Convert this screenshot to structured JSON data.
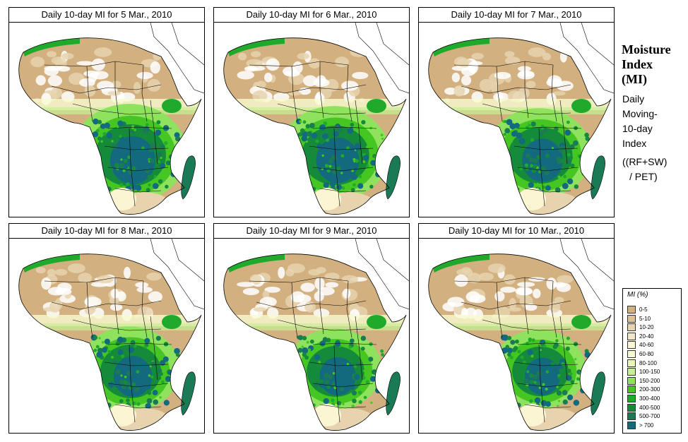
{
  "panels": [
    {
      "title": "Daily 10-day MI for  5 Mar., 2010",
      "wet_level": 1.0
    },
    {
      "title": "Daily 10-day MI for  6 Mar., 2010",
      "wet_level": 0.95
    },
    {
      "title": "Daily 10-day MI for  7 Mar., 2010",
      "wet_level": 0.9
    },
    {
      "title": "Daily 10-day MI for  8 Mar., 2010",
      "wet_level": 0.85
    },
    {
      "title": "Daily 10-day MI for  9 Mar., 2010",
      "wet_level": 0.8
    },
    {
      "title": "Daily 10-day MI for  10 Mar., 2010",
      "wet_level": 0.78
    }
  ],
  "side": {
    "title_line1": "Moisture",
    "title_line2": "Index",
    "title_line3": "(MI)",
    "desc_line1": "Daily",
    "desc_line2": "Moving-",
    "desc_line3": "10-day",
    "desc_line4": "Index",
    "formula_line1": "((RF+SW)",
    "formula_line2": "/ PET)"
  },
  "legend": {
    "title": "MI (%)",
    "items": [
      {
        "label": "0-5",
        "color": "#d2b07f"
      },
      {
        "label": "5-10",
        "color": "#ddc095"
      },
      {
        "label": "10-20",
        "color": "#e8d3af"
      },
      {
        "label": "20-40",
        "color": "#f2e6c8"
      },
      {
        "label": "40-60",
        "color": "#fbf5d4"
      },
      {
        "label": "60-80",
        "color": "#f8fbd0"
      },
      {
        "label": "80-100",
        "color": "#e7f7b6"
      },
      {
        "label": "100-150",
        "color": "#c6f093"
      },
      {
        "label": "150-200",
        "color": "#8fe25e"
      },
      {
        "label": "200-300",
        "color": "#45c623"
      },
      {
        "label": "300-400",
        "color": "#1faa2b"
      },
      {
        "label": "400-500",
        "color": "#168a3b"
      },
      {
        "label": "500-700",
        "color": "#1a7a55"
      },
      {
        "label": "> 700",
        "color": "#136a7e"
      }
    ]
  }
}
